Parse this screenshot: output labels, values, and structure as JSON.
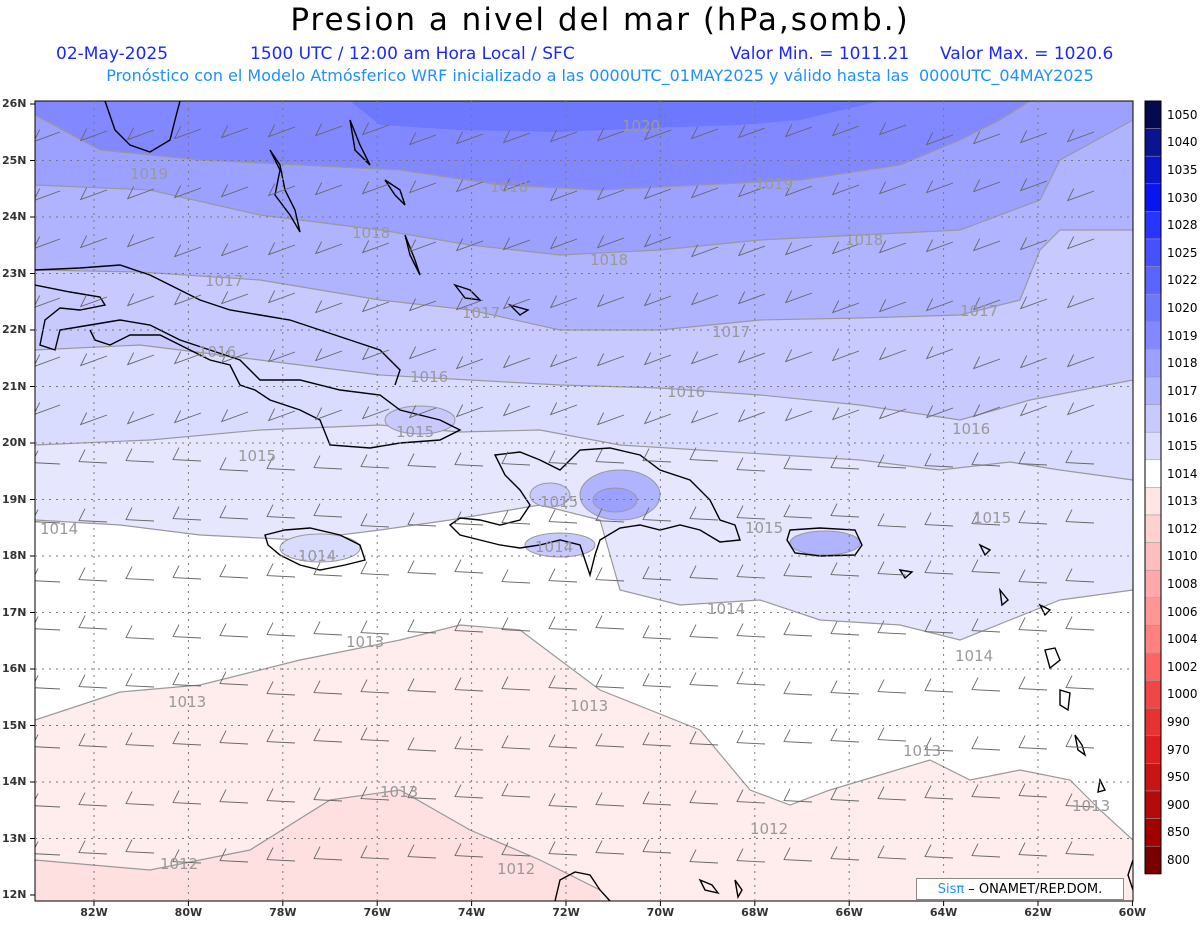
{
  "title": "Presion a nivel del mar (hPa,somb.)",
  "info": {
    "date": "02-May-2025",
    "time": "1500 UTC / 12:00 am Hora Local / SFC",
    "min": "Valor Min. = 1011.21",
    "max": "Valor Max. = 1020.6"
  },
  "subtitle": "Pronóstico con el Modelo Atmósferico WRF inicializado a las 0000UTC_01MAY2025 y válido hasta las  0000UTC_04MAY2025",
  "lat_labels": [
    "26N",
    "25N",
    "24N",
    "23N",
    "22N",
    "21N",
    "20N",
    "19N",
    "18N",
    "17N",
    "16N",
    "15N",
    "14N",
    "13N",
    "12N"
  ],
  "lon_labels": [
    "82W",
    "80W",
    "78W",
    "76W",
    "74W",
    "72W",
    "70W",
    "68W",
    "66W",
    "64W",
    "62W",
    "60W"
  ],
  "colorbar": [
    "1050",
    "1040",
    "1035",
    "1030",
    "1028",
    "1025",
    "1022",
    "1020",
    "1019",
    "1018",
    "1017",
    "1016",
    "1015",
    "1014",
    "1013",
    "1012",
    "1010",
    "1008",
    "1006",
    "1004",
    "1002",
    "1000",
    "990",
    "970",
    "950",
    "900",
    "850",
    "800"
  ],
  "colorbar_colors": [
    "#050a50",
    "#0a1490",
    "#0a14c8",
    "#0a14f0",
    "#2834ff",
    "#4650ff",
    "#5a64ff",
    "#6e78ff",
    "#8288ff",
    "#9ca0ff",
    "#b0b4ff",
    "#c8caff",
    "#dcdcff",
    "#ffffff",
    "#ffe6e6",
    "#ffd2d2",
    "#ffbebe",
    "#ffaaaa",
    "#ff9696",
    "#ff8282",
    "#ff6464",
    "#f04646",
    "#e63232",
    "#dc1e1e",
    "#c81414",
    "#b40a0a",
    "#a00000",
    "#780000"
  ],
  "contour_labels": [
    "1020",
    "1019",
    "1019",
    "1018",
    "1018",
    "1018",
    "1018",
    "1017",
    "1017",
    "1017",
    "1017",
    "1016",
    "1016",
    "1016",
    "1016",
    "1015",
    "1015",
    "1015",
    "1015",
    "1015",
    "1014",
    "1014",
    "1014",
    "1014",
    "1014",
    "1013",
    "1013",
    "1013",
    "1013",
    "1013",
    "1013",
    "1012",
    "1012",
    "1012"
  ],
  "credit": {
    "sis": "Sisπ",
    "org": "– ONAMET/REP.DOM."
  }
}
